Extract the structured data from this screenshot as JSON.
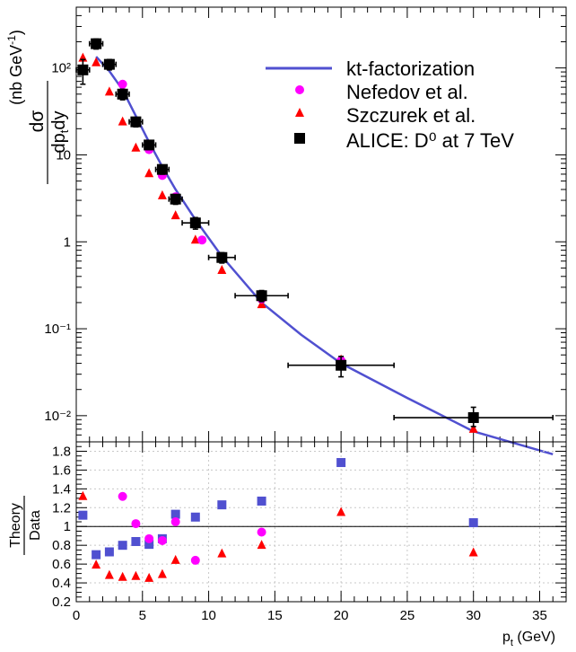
{
  "chart_data": [
    {
      "type": "scatter",
      "scale": "log",
      "ylabel": "dσ/dp_t dy (nb GeV^-1)",
      "xlim": [
        0,
        37
      ],
      "ylim": [
        0.005,
        500
      ],
      "colors": {
        "model": "#5050d0",
        "nefedov": "#ff00ff",
        "szczurek": "#ff0000",
        "alice": "#000000"
      },
      "legend": [
        {
          "key": "model",
          "label": "kt-factorization"
        },
        {
          "key": "nefedov",
          "label": "Nefedov et al."
        },
        {
          "key": "szczurek",
          "label": "Szczurek et al."
        },
        {
          "key": "alice",
          "label": "ALICE: D⁰ at 7 TeV"
        }
      ],
      "series": [
        {
          "name": "ALICE: D⁰ at 7 TeV",
          "key": "alice",
          "x": [
            0.5,
            1.5,
            2.5,
            3.5,
            4.5,
            5.5,
            6.5,
            7.5,
            9,
            11,
            14,
            20,
            30
          ],
          "xerr": [
            0.5,
            0.5,
            0.5,
            0.5,
            0.5,
            0.5,
            0.5,
            0.5,
            1,
            1,
            2,
            4,
            6
          ],
          "y": [
            95,
            190,
            110,
            50,
            24,
            13,
            6.8,
            3.1,
            1.65,
            0.66,
            0.24,
            0.038,
            0.0095
          ],
          "yerr_low": [
            30,
            25,
            15,
            7,
            3,
            1.5,
            0.8,
            0.4,
            0.25,
            0.09,
            0.035,
            0.01,
            0.002
          ],
          "yerr_high": [
            30,
            25,
            15,
            7,
            3,
            1.5,
            0.8,
            0.4,
            0.25,
            0.09,
            0.035,
            0.01,
            0.003
          ]
        },
        {
          "name": "Nefedov et al.",
          "key": "nefedov",
          "x": [
            3.5,
            4.5,
            5.5,
            6.5,
            7.5,
            9.5,
            14,
            20
          ],
          "y": [
            65,
            24,
            11.5,
            5.8,
            3.3,
            1.05,
            0.22,
            0.043
          ]
        },
        {
          "name": "Szczurek et al.",
          "key": "szczurek",
          "x": [
            0.5,
            1.5,
            2.5,
            3.5,
            4.5,
            5.5,
            6.5,
            7.5,
            9,
            11,
            14,
            20,
            30
          ],
          "y": [
            130,
            115,
            53,
            24,
            12,
            6.1,
            3.4,
            2.0,
            1.05,
            0.47,
            0.19,
            0.044,
            0.007
          ]
        },
        {
          "name": "kt-factorization",
          "key": "model",
          "line": true,
          "x": [
            1.5,
            2.5,
            3.5,
            4.5,
            5.5,
            6.5,
            7.5,
            9,
            11,
            14,
            17,
            20,
            25,
            30,
            36
          ],
          "y": [
            135,
            92,
            56,
            28,
            14,
            7.3,
            4.0,
            1.8,
            0.68,
            0.2,
            0.085,
            0.04,
            0.016,
            0.0066,
            0.0036
          ]
        }
      ],
      "y_ticks": [
        {
          "value": 100,
          "label": "10²"
        },
        {
          "value": 10,
          "label": "10"
        },
        {
          "value": 1,
          "label": "1"
        },
        {
          "value": 0.1,
          "label": "10⁻¹"
        },
        {
          "value": 0.01,
          "label": "10⁻²"
        }
      ]
    },
    {
      "type": "scatter",
      "ylabel": "Theory / Data",
      "xlabel": "p_t (GeV)",
      "xlim": [
        0,
        37
      ],
      "ylim": [
        0.2,
        1.9
      ],
      "grid": true,
      "reference_line": 1.0,
      "x_ticks": [
        0,
        5,
        10,
        15,
        20,
        25,
        30,
        35
      ],
      "y_ticks": [
        0.2,
        0.4,
        0.6,
        0.8,
        1.0,
        1.2,
        1.4,
        1.6,
        1.8
      ],
      "y_tick_labels": [
        "0.2",
        "0.4",
        "0.6",
        "0.8",
        "1",
        "1.2",
        "1.4",
        "1.6",
        "1.8"
      ],
      "series": [
        {
          "name": "kt-factorization / Data",
          "key": "model",
          "x": [
            0.5,
            1.5,
            2.5,
            3.5,
            4.5,
            5.5,
            6.5,
            7.5,
            9,
            11,
            14,
            20,
            30
          ],
          "y": [
            1.12,
            0.7,
            0.73,
            0.8,
            0.84,
            0.81,
            0.87,
            1.13,
            1.1,
            1.23,
            1.27,
            1.68,
            1.04
          ]
        },
        {
          "name": "Nefedov et al. / Data",
          "key": "nefedov",
          "x": [
            3.5,
            4.5,
            5.5,
            6.5,
            7.5,
            9,
            14
          ],
          "y": [
            1.32,
            1.03,
            0.87,
            0.85,
            1.05,
            0.64,
            0.94
          ]
        },
        {
          "name": "Szczurek et al. / Data",
          "key": "szczurek",
          "x": [
            0.5,
            1.5,
            2.5,
            3.5,
            4.5,
            5.5,
            6.5,
            7.5,
            11,
            14,
            20,
            30
          ],
          "y": [
            1.32,
            0.59,
            0.48,
            0.46,
            0.47,
            0.45,
            0.49,
            0.64,
            0.71,
            0.8,
            1.15,
            0.72
          ]
        }
      ]
    }
  ]
}
